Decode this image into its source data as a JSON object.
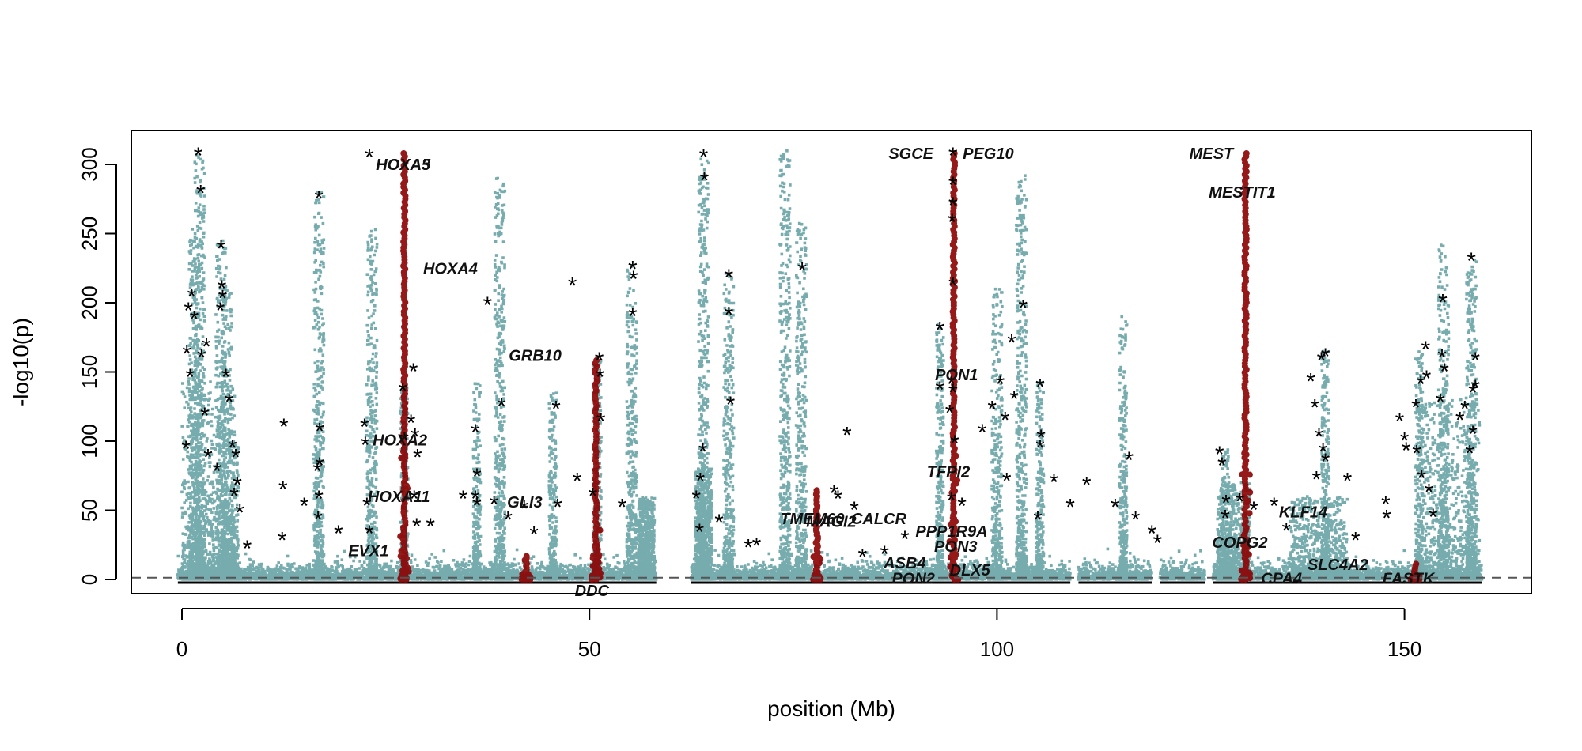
{
  "chart_data": {
    "type": "scatter",
    "title": "",
    "xlabel": "position (Mb)",
    "ylabel": "-log10(p)",
    "xlim": [
      -6,
      165
    ],
    "ylim": [
      -10,
      325
    ],
    "xticks": [
      0,
      50,
      100,
      150
    ],
    "yticks": [
      0,
      50,
      100,
      150,
      200,
      250,
      300
    ],
    "xtick_labels": [
      "0",
      "50",
      "100",
      "150"
    ],
    "ytick_labels": [
      "0",
      "50",
      "100",
      "150",
      "200",
      "250",
      "300"
    ],
    "threshold": 1.3,
    "grid": false,
    "legend": "none",
    "colors": {
      "background_snp": "#5f9ea0",
      "highlight_snp": "#8b0000",
      "top_hit_marker": "#000000",
      "threshold_line": "#555555",
      "baseline": "#000000"
    },
    "highlight_regions": [
      {
        "x": 27.3,
        "peak": 308
      },
      {
        "x": 42.2,
        "peak": 18
      },
      {
        "x": 50.8,
        "peak": 160
      },
      {
        "x": 77.9,
        "peak": 65
      },
      {
        "x": 94.7,
        "peak": 308
      },
      {
        "x": 130.5,
        "peak": 308
      },
      {
        "x": 151.3,
        "peak": 12
      }
    ],
    "peaks": [
      {
        "x": 1.5,
        "y": 260
      },
      {
        "x": 2.2,
        "y": 308
      },
      {
        "x": 4.8,
        "y": 245
      },
      {
        "x": 5.5,
        "y": 210
      },
      {
        "x": 6.5,
        "y": 100
      },
      {
        "x": 16.8,
        "y": 280
      },
      {
        "x": 23.3,
        "y": 258
      },
      {
        "x": 27.3,
        "y": 140
      },
      {
        "x": 36.2,
        "y": 145
      },
      {
        "x": 39.0,
        "y": 290
      },
      {
        "x": 45.5,
        "y": 135
      },
      {
        "x": 51.0,
        "y": 160
      },
      {
        "x": 55.2,
        "y": 230
      },
      {
        "x": 64.0,
        "y": 308
      },
      {
        "x": 67.1,
        "y": 222
      },
      {
        "x": 74.0,
        "y": 310
      },
      {
        "x": 76.0,
        "y": 258
      },
      {
        "x": 93.0,
        "y": 185
      },
      {
        "x": 100.0,
        "y": 210
      },
      {
        "x": 103.0,
        "y": 295
      },
      {
        "x": 105.3,
        "y": 145
      },
      {
        "x": 115.5,
        "y": 190
      },
      {
        "x": 128.0,
        "y": 95
      },
      {
        "x": 140.3,
        "y": 165
      },
      {
        "x": 151.8,
        "y": 165
      },
      {
        "x": 154.8,
        "y": 245
      },
      {
        "x": 158.2,
        "y": 235
      }
    ],
    "star_markers": [
      [
        2.0,
        308
      ],
      [
        2.3,
        281
      ],
      [
        1.2,
        206
      ],
      [
        0.8,
        196
      ],
      [
        1.5,
        190
      ],
      [
        0.6,
        165
      ],
      [
        2.4,
        162
      ],
      [
        3.0,
        170
      ],
      [
        1.0,
        148
      ],
      [
        2.8,
        120
      ],
      [
        0.5,
        96
      ],
      [
        3.2,
        90
      ],
      [
        4.8,
        241
      ],
      [
        4.9,
        212
      ],
      [
        5.0,
        205
      ],
      [
        4.7,
        196
      ],
      [
        5.4,
        148
      ],
      [
        5.8,
        130
      ],
      [
        6.2,
        97
      ],
      [
        6.6,
        90
      ],
      [
        4.3,
        80
      ],
      [
        6.8,
        70
      ],
      [
        6.4,
        62
      ],
      [
        7.1,
        50
      ],
      [
        8.0,
        24
      ],
      [
        12.5,
        112
      ],
      [
        12.4,
        67
      ],
      [
        12.3,
        30
      ],
      [
        15.0,
        55
      ],
      [
        16.8,
        277
      ],
      [
        16.9,
        109
      ],
      [
        16.9,
        84
      ],
      [
        16.6,
        80
      ],
      [
        16.8,
        60
      ],
      [
        16.7,
        45
      ],
      [
        19.2,
        35
      ],
      [
        23.0,
        307
      ],
      [
        22.4,
        112
      ],
      [
        22.5,
        99
      ],
      [
        22.7,
        55
      ],
      [
        23.0,
        35
      ],
      [
        27.1,
        138
      ],
      [
        27.3,
        102
      ],
      [
        28.4,
        152
      ],
      [
        28.1,
        115
      ],
      [
        28.6,
        105
      ],
      [
        28.9,
        90
      ],
      [
        28.5,
        60
      ],
      [
        28.8,
        40
      ],
      [
        30.5,
        40
      ],
      [
        34.5,
        60
      ],
      [
        36.0,
        108
      ],
      [
        36.2,
        76
      ],
      [
        36.0,
        60
      ],
      [
        36.2,
        55
      ],
      [
        37.5,
        200
      ],
      [
        39.2,
        127
      ],
      [
        38.3,
        56
      ],
      [
        40.0,
        45
      ],
      [
        42.0,
        53
      ],
      [
        43.2,
        34
      ],
      [
        45.9,
        125
      ],
      [
        47.9,
        214
      ],
      [
        46.1,
        54
      ],
      [
        48.5,
        73
      ],
      [
        50.4,
        62
      ],
      [
        51.2,
        160
      ],
      [
        51.3,
        148
      ],
      [
        51.4,
        116
      ],
      [
        55.3,
        226
      ],
      [
        55.4,
        219
      ],
      [
        55.3,
        192
      ],
      [
        54.0,
        54
      ],
      [
        63.1,
        60
      ],
      [
        63.6,
        73
      ],
      [
        64.0,
        307
      ],
      [
        64.1,
        290
      ],
      [
        63.9,
        94
      ],
      [
        63.5,
        36
      ],
      [
        65.9,
        43
      ],
      [
        67.1,
        220
      ],
      [
        67.1,
        193
      ],
      [
        67.3,
        128
      ],
      [
        69.5,
        25
      ],
      [
        70.5,
        26
      ],
      [
        76.1,
        225
      ],
      [
        81.6,
        106
      ],
      [
        80.0,
        64
      ],
      [
        80.5,
        60
      ],
      [
        82.5,
        52
      ],
      [
        83.5,
        18
      ],
      [
        86.2,
        20
      ],
      [
        88.7,
        31
      ],
      [
        93.0,
        182
      ],
      [
        93.0,
        139
      ],
      [
        94.6,
        308
      ],
      [
        94.6,
        287
      ],
      [
        94.6,
        272
      ],
      [
        94.5,
        260
      ],
      [
        94.6,
        214
      ],
      [
        94.4,
        143
      ],
      [
        94.6,
        137
      ],
      [
        94.2,
        122
      ],
      [
        94.8,
        100
      ],
      [
        94.4,
        59
      ],
      [
        95.7,
        55
      ],
      [
        98.2,
        108
      ],
      [
        99.4,
        125
      ],
      [
        100.4,
        143
      ],
      [
        101.0,
        117
      ],
      [
        101.2,
        73
      ],
      [
        102.1,
        132
      ],
      [
        103.2,
        198
      ],
      [
        101.8,
        173
      ],
      [
        105.3,
        141
      ],
      [
        105.4,
        104
      ],
      [
        105.3,
        97
      ],
      [
        105.0,
        45
      ],
      [
        107.0,
        72
      ],
      [
        109.0,
        54
      ],
      [
        111.0,
        70
      ],
      [
        114.5,
        54
      ],
      [
        116.2,
        88
      ],
      [
        117.0,
        45
      ],
      [
        119.0,
        35
      ],
      [
        119.7,
        28
      ],
      [
        127.3,
        92
      ],
      [
        127.6,
        84
      ],
      [
        128.1,
        57
      ],
      [
        128.0,
        46
      ],
      [
        129.8,
        58
      ],
      [
        131.5,
        52
      ],
      [
        134.0,
        55
      ],
      [
        135.5,
        37
      ],
      [
        138.5,
        145
      ],
      [
        139.0,
        126
      ],
      [
        139.8,
        160
      ],
      [
        140.3,
        163
      ],
      [
        139.5,
        105
      ],
      [
        140.0,
        94
      ],
      [
        140.3,
        87
      ],
      [
        139.2,
        74
      ],
      [
        143.0,
        73
      ],
      [
        144.0,
        30
      ],
      [
        147.7,
        56
      ],
      [
        147.8,
        46
      ],
      [
        149.4,
        116
      ],
      [
        150.0,
        102
      ],
      [
        150.2,
        95
      ],
      [
        151.4,
        126
      ],
      [
        152.0,
        143
      ],
      [
        152.6,
        168
      ],
      [
        152.7,
        147
      ],
      [
        151.5,
        93
      ],
      [
        152.1,
        75
      ],
      [
        153.0,
        65
      ],
      [
        153.5,
        47
      ],
      [
        154.7,
        202
      ],
      [
        154.6,
        162
      ],
      [
        154.9,
        152
      ],
      [
        154.4,
        130
      ],
      [
        156.8,
        117
      ],
      [
        157.4,
        125
      ],
      [
        158.2,
        232
      ],
      [
        158.4,
        137
      ],
      [
        158.4,
        107
      ],
      [
        158.0,
        93
      ],
      [
        158.7,
        160
      ],
      [
        158.7,
        140
      ]
    ],
    "gene_labels": [
      {
        "text": "HOXA5",
        "x": 23.8,
        "y": 300
      },
      {
        "text": "HOXA3",
        "x": 23.8,
        "y": 300
      },
      {
        "text": "HOXA4",
        "x": 29.6,
        "y": 225
      },
      {
        "text": "HOXA2",
        "x": 23.4,
        "y": 101
      },
      {
        "text": "HOXA11",
        "x": 22.8,
        "y": 60
      },
      {
        "text": "EVX1",
        "x": 20.4,
        "y": 21
      },
      {
        "text": "GRB10",
        "x": 40.1,
        "y": 162
      },
      {
        "text": "GLI3",
        "x": 39.9,
        "y": 56
      },
      {
        "text": "DDC",
        "x": 48.2,
        "y": -8
      },
      {
        "text": "SGCE",
        "x": 86.7,
        "y": 308
      },
      {
        "text": "PEG10",
        "x": 95.8,
        "y": 308
      },
      {
        "text": "PON1",
        "x": 92.4,
        "y": 148
      },
      {
        "text": "TFPI2",
        "x": 91.4,
        "y": 78
      },
      {
        "text": "TMEM60",
        "x": 73.4,
        "y": 44
      },
      {
        "text": "MAGI2",
        "x": 76.6,
        "y": 42
      },
      {
        "text": "CALCR",
        "x": 82.1,
        "y": 44
      },
      {
        "text": "PPP1R9A",
        "x": 90.0,
        "y": 35
      },
      {
        "text": "PON3",
        "x": 92.3,
        "y": 24
      },
      {
        "text": "ASB4",
        "x": 86.1,
        "y": 12
      },
      {
        "text": "PON2",
        "x": 87.1,
        "y": 1
      },
      {
        "text": "DLX5",
        "x": 94.2,
        "y": 7
      },
      {
        "text": "MEST",
        "x": 123.6,
        "y": 308
      },
      {
        "text": "MESTIT1",
        "x": 126.0,
        "y": 280
      },
      {
        "text": "COPG2",
        "x": 126.4,
        "y": 27
      },
      {
        "text": "KLF14",
        "x": 134.6,
        "y": 49
      },
      {
        "text": "SLC4A2",
        "x": 138.1,
        "y": 11
      },
      {
        "text": "CPA4",
        "x": 132.4,
        "y": 1
      },
      {
        "text": "FASTK",
        "x": 147.3,
        "y": 1
      }
    ]
  }
}
